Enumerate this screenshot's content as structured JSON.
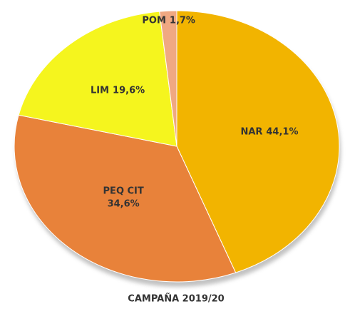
{
  "chart_data": {
    "type": "pie",
    "title": "CAMPAÑA 2019/20",
    "categories": [
      "NAR",
      "PEQ CIT",
      "LIM",
      "POM"
    ],
    "values": [
      44.1,
      34.6,
      19.6,
      1.7
    ],
    "value_labels": [
      "44,1%",
      "34,6%",
      "19,6%",
      "1,7%"
    ],
    "colors": [
      "#f2b400",
      "#e8823a",
      "#f5f51e",
      "#f0a882"
    ]
  }
}
